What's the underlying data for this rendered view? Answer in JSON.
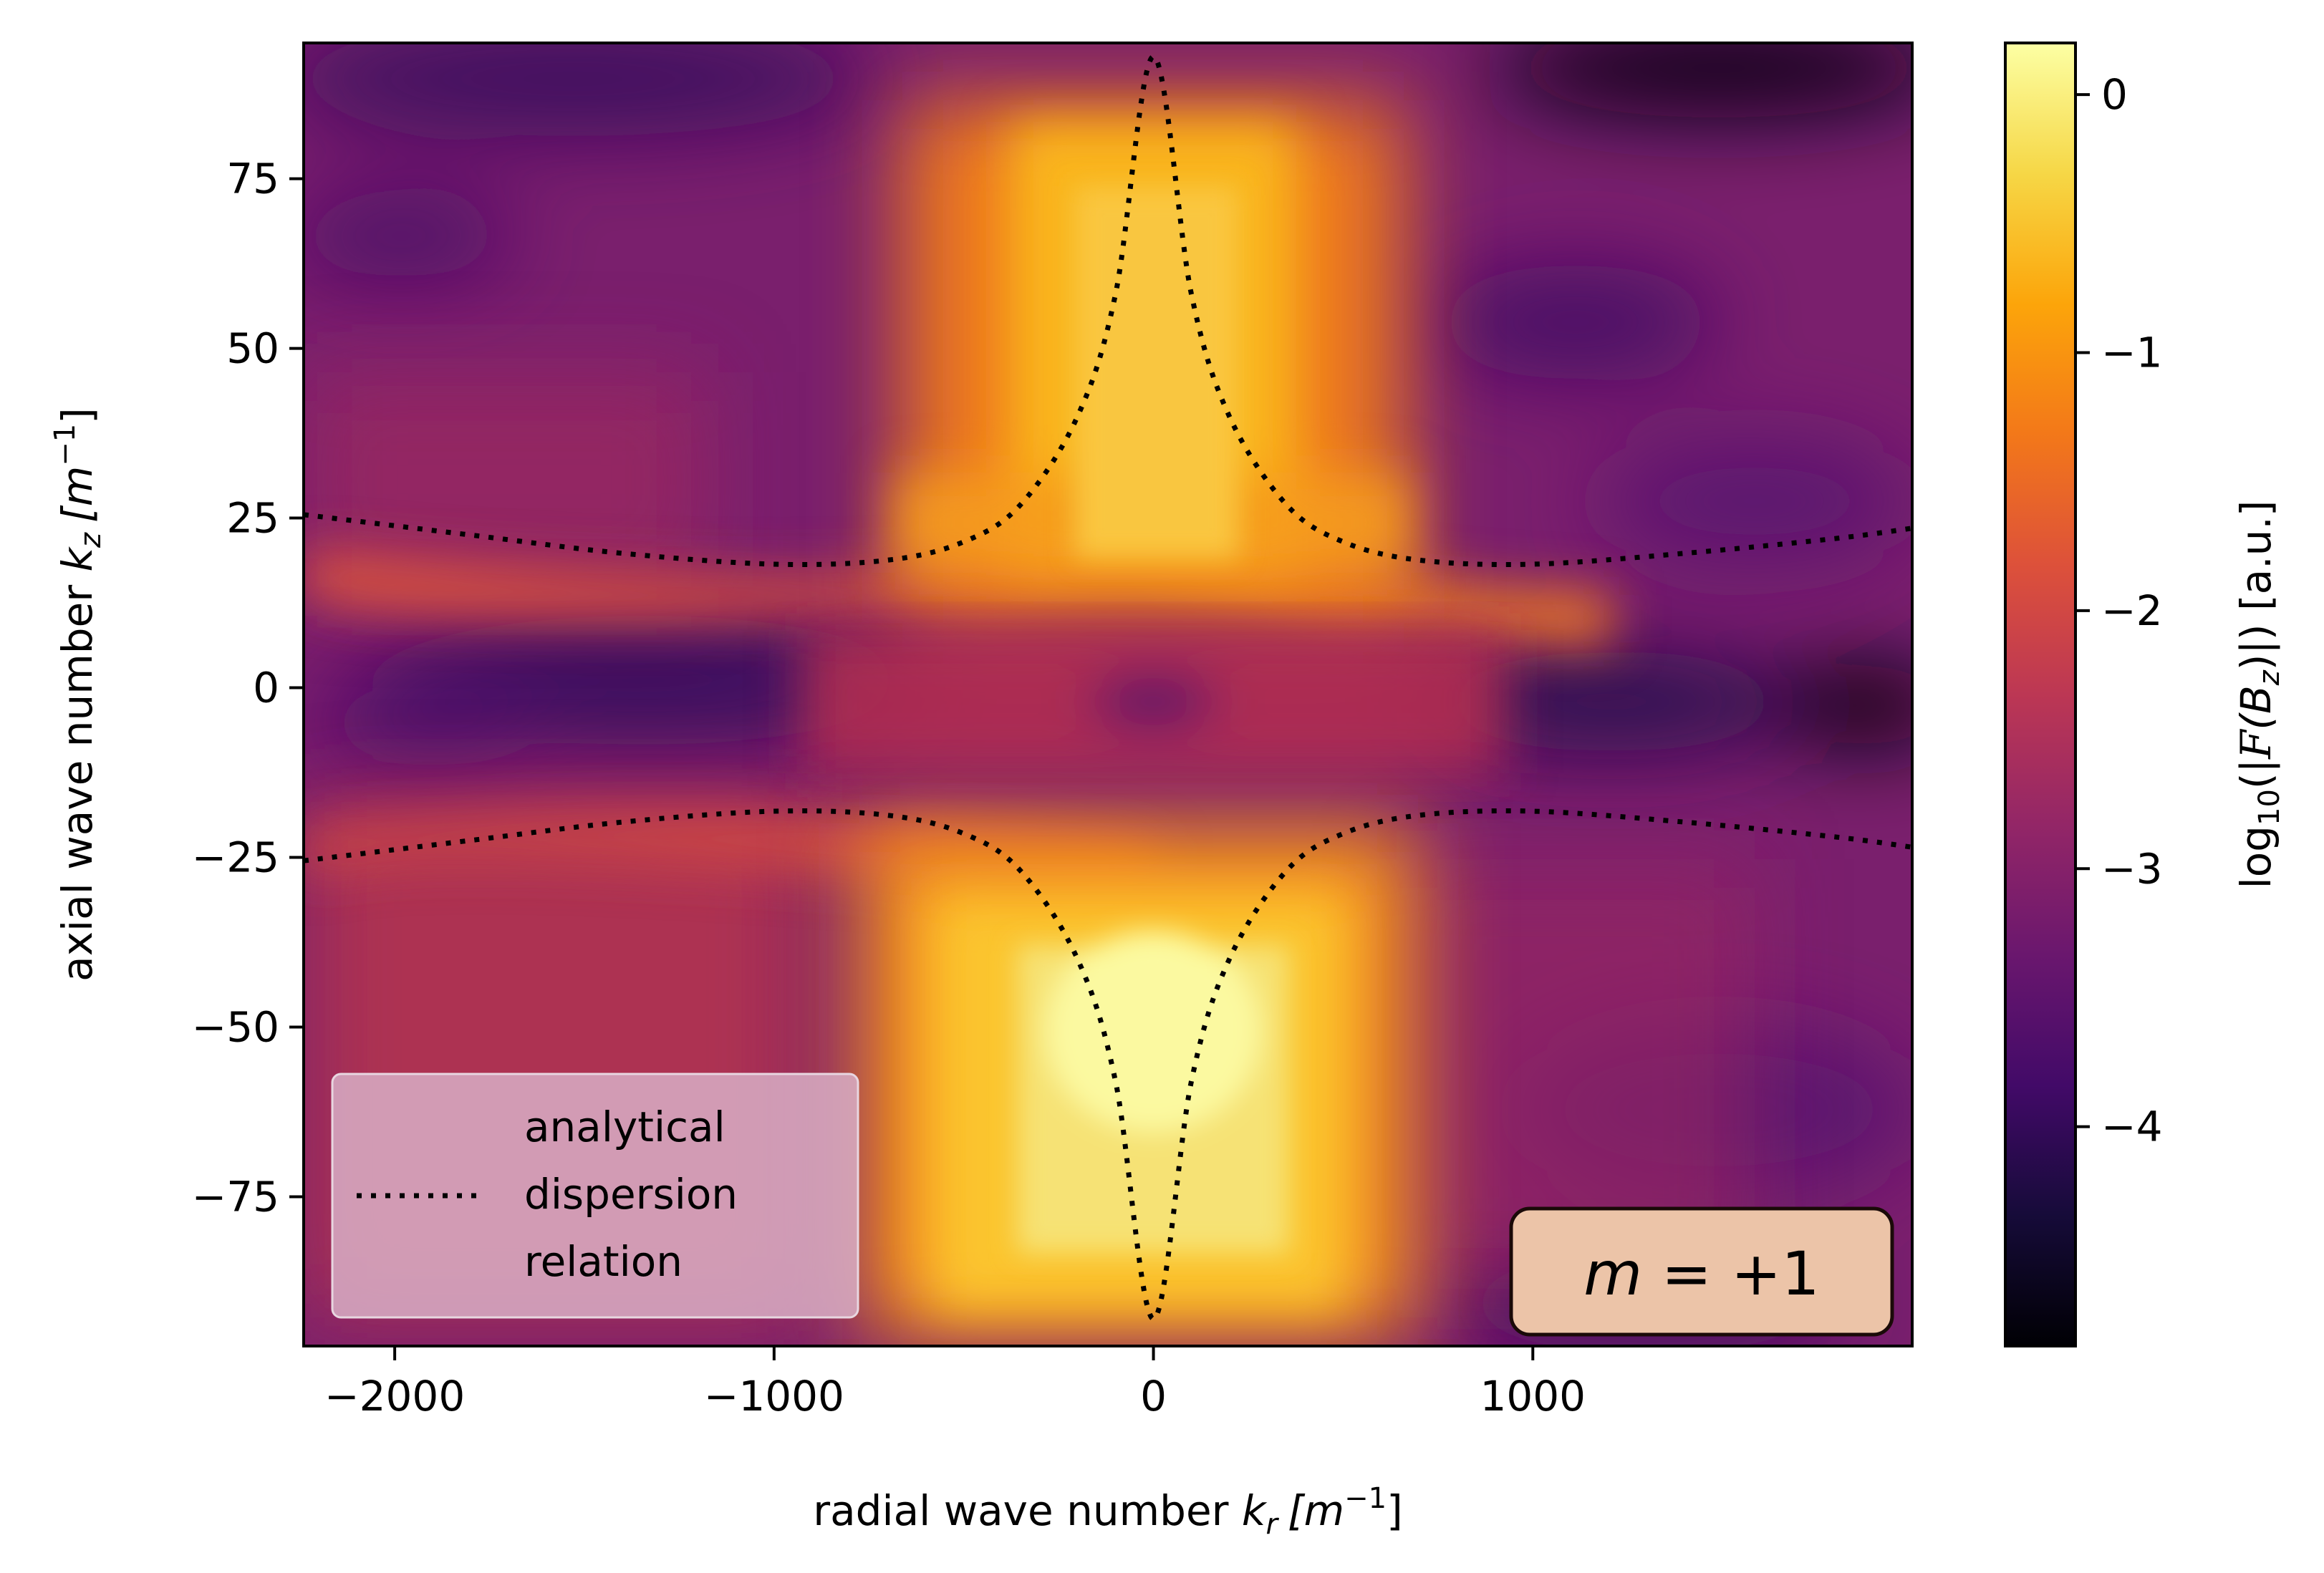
{
  "chart_data": {
    "type": "heatmap",
    "title": "",
    "xlabel": "radial wave number k_r [m^-1]",
    "ylabel": "axial wave number k_z [m^-1]",
    "colorbar_label": "log10(|F(B_z)|) [a.u.]",
    "colormap": "inferno",
    "xlim": [
      -2240,
      2000
    ],
    "ylim": [
      -97,
      95
    ],
    "clim": [
      -4.85,
      0.2
    ],
    "x_ticks": [
      -2000,
      -1000,
      0,
      1000
    ],
    "x_tick_labels": [
      "−2000",
      "−1000",
      "0",
      "1000"
    ],
    "y_ticks": [
      75,
      50,
      25,
      0,
      -25,
      -50,
      -75
    ],
    "y_tick_labels": [
      "75",
      "50",
      "25",
      "0",
      "−25",
      "−50",
      "−75"
    ],
    "colorbar_ticks": [
      0,
      -1,
      -2,
      -3,
      -4
    ],
    "colorbar_tick_labels": [
      "0",
      "−1",
      "−2",
      "−3",
      "−4"
    ],
    "series": [
      {
        "name": "analytical dispersion relation",
        "style": "dotted",
        "color": "#000000",
        "branches": [
          {
            "x": [
              -2240,
              -1800,
              -1400,
              -1000,
              -700,
              -500,
              -350,
              -200,
              -100,
              0,
              100,
              200,
              350,
              500,
              700,
              1000,
              1400,
              1800,
              2000
            ],
            "y": [
              25.5,
              22.5,
              19.8,
              18.2,
              18.8,
              21.5,
              27,
              40,
              58,
              93,
              58,
              40,
              27,
              21.5,
              18.8,
              18.2,
              19.8,
              22,
              23.5
            ]
          },
          {
            "x": [
              -2240,
              -1800,
              -1400,
              -1000,
              -700,
              -500,
              -350,
              -200,
              -100,
              0,
              100,
              200,
              350,
              500,
              700,
              1000,
              1400,
              1800,
              2000
            ],
            "y": [
              -25.5,
              -22.5,
              -19.8,
              -18.2,
              -18.8,
              -21.5,
              -27,
              -40,
              -58,
              -93,
              -58,
              -40,
              -27,
              -21.5,
              -18.8,
              -18.2,
              -19.8,
              -22,
              -23.5
            ]
          }
        ]
      }
    ],
    "legend": {
      "placement": "lower-left",
      "lines": [
        "analytical",
        "dispersion",
        "relation"
      ]
    },
    "annotation": {
      "text": "m = +1",
      "placement": "lower-right"
    },
    "colors": {
      "colorbar_top": "#fcffa4",
      "colorbar_bottom": "#000004",
      "annotation_fill": "#ecc4a8",
      "legend_fill": "#d4a8c0"
    }
  },
  "ui": {
    "xlabel_text": "radial wave number ",
    "xlabel_symbol": "k",
    "xlabel_sub": "r",
    "xlabel_unit": "[m",
    "xlabel_exp": "−1",
    "xlabel_close": "]",
    "ylabel_text": "axial wave number ",
    "ylabel_symbol": "k",
    "ylabel_sub": "z",
    "ylabel_unit": "[m",
    "ylabel_exp": "−1",
    "ylabel_close": "]",
    "cbar_log": "log",
    "cbar_log_sub": "10",
    "cbar_mid": "(|",
    "cbar_F": "F",
    "cbar_B": "(B",
    "cbar_B_sub": "z",
    "cbar_end": ")|) [a.u.]",
    "annotation_m": "m",
    "annotation_rest": " = +1"
  }
}
